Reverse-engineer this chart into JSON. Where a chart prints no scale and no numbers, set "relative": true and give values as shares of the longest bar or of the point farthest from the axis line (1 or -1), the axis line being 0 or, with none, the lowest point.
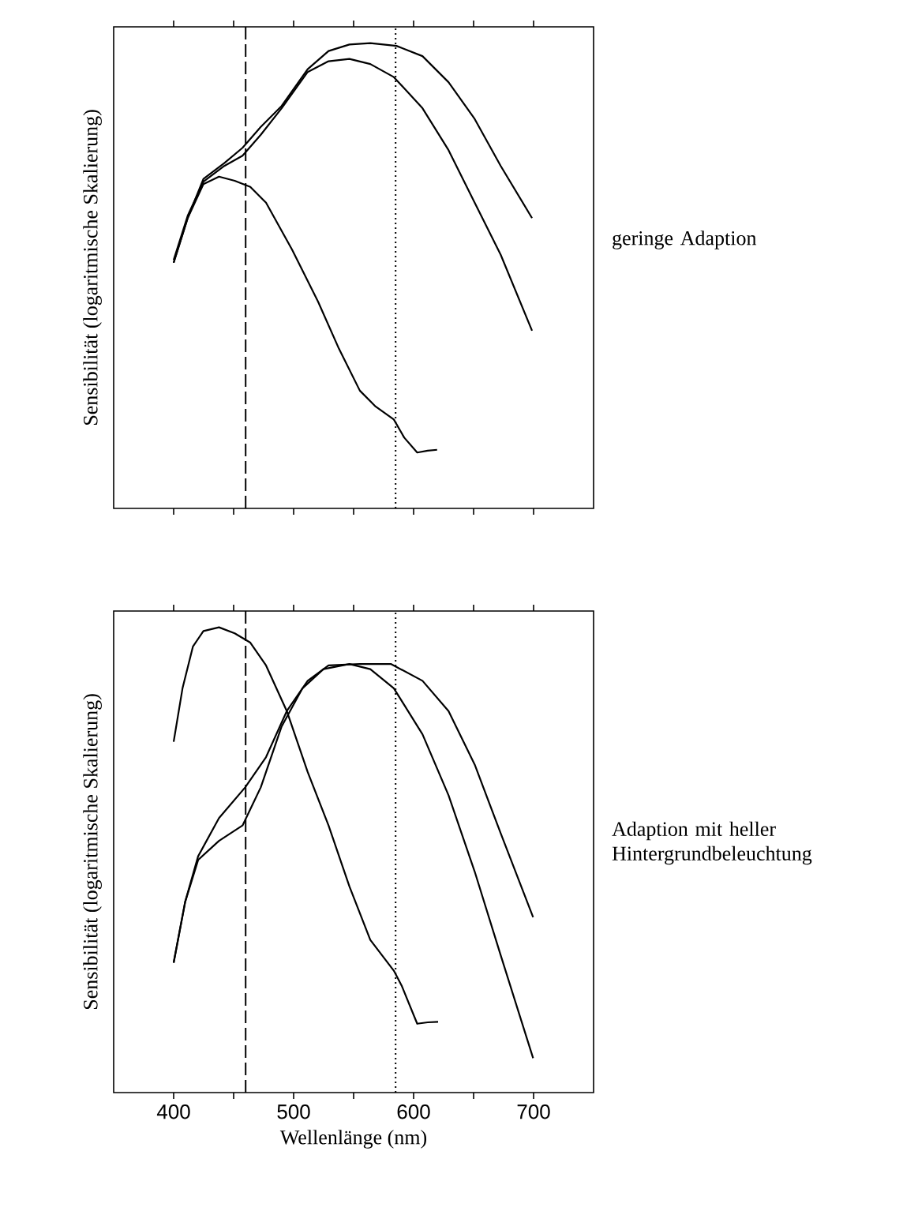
{
  "chart_data": [
    {
      "type": "line",
      "relative": true,
      "ylabel": "Sensibilität (logaritmische Skalierung)",
      "xlim": [
        350,
        750
      ],
      "xticks": [
        400,
        450,
        500,
        550,
        600,
        650,
        700
      ],
      "tick_labels": false,
      "line_style": "solid",
      "annotations": [
        "geringe Adaption"
      ],
      "ref_lines": [
        {
          "axis": "x",
          "value": 460,
          "color": "#000000",
          "line_style": "dashed"
        },
        {
          "axis": "x",
          "value": 585,
          "color": "#000000",
          "line_style": "dotted"
        }
      ],
      "series": [
        {
          "color": "#000000",
          "x": [
            400,
            411.7,
            424.8,
            437.8,
            450.9,
            463.9,
            477,
            498.7,
            520.4,
            537.8,
            555.2,
            568.3,
            583.5,
            592.2,
            603,
            611.7,
            619.6
          ],
          "values": [
            0.528,
            0.624,
            0.697,
            0.713,
            0.704,
            0.691,
            0.657,
            0.556,
            0.444,
            0.343,
            0.253,
            0.219,
            0.191,
            0.152,
            0.12,
            0.124,
            0.126
          ]
        },
        {
          "color": "#000000",
          "x": [
            400,
            411.7,
            424.8,
            442.2,
            457.4,
            472.6,
            490,
            511.7,
            529.1,
            546.5,
            563.9,
            583.5,
            607.4,
            629.1,
            650.9,
            672.6,
            698.7
          ],
          "values": [
            0.534,
            0.629,
            0.702,
            0.736,
            0.758,
            0.803,
            0.86,
            0.938,
            0.961,
            0.966,
            0.955,
            0.927,
            0.86,
            0.77,
            0.657,
            0.545,
            0.382
          ]
        },
        {
          "color": "#000000",
          "x": [
            400,
            411.7,
            424.8,
            442.2,
            457.4,
            472.6,
            490,
            511.7,
            529.1,
            546.5,
            563.9,
            585.7,
            607.4,
            629.1,
            650.9,
            672.6,
            698.7
          ],
          "values": [
            0.528,
            0.624,
            0.708,
            0.742,
            0.775,
            0.82,
            0.865,
            0.944,
            0.983,
            0.997,
            1.0,
            0.994,
            0.972,
            0.916,
            0.837,
            0.736,
            0.624
          ]
        }
      ]
    },
    {
      "type": "line",
      "relative": true,
      "ylabel": "Sensibilität (logaritmische Skalierung)",
      "xlabel": "Wellenlänge (nm)",
      "xlim": [
        350,
        750
      ],
      "xticks": [
        400,
        {
          "value": 450,
          "label": null
        },
        500,
        {
          "value": 550,
          "label": null
        },
        600,
        {
          "value": 650,
          "label": null
        },
        700
      ],
      "tick_labels": "x",
      "line_style": "solid",
      "annotations": [
        "Adaption mit heller Hintergrundbeleuchtung"
      ],
      "ref_lines": [
        {
          "axis": "x",
          "value": 460,
          "color": "#000000",
          "line_style": "dashed"
        },
        {
          "axis": "x",
          "value": 585,
          "color": "#000000",
          "line_style": "dotted"
        }
      ],
      "series": [
        {
          "color": "#000000",
          "x": [
            400,
            407.4,
            416.1,
            424.8,
            437.8,
            450.9,
            463.9,
            477,
            494.3,
            511.7,
            529.1,
            546.5,
            563.9,
            583.5,
            590,
            603,
            611.7,
            620.4
          ],
          "values": [
            0.754,
            0.869,
            0.959,
            0.992,
            1.0,
            0.987,
            0.967,
            0.918,
            0.82,
            0.689,
            0.574,
            0.443,
            0.328,
            0.262,
            0.23,
            0.148,
            0.151,
            0.152
          ]
        },
        {
          "color": "#000000",
          "x": [
            400,
            409.6,
            420.4,
            437.8,
            457.4,
            472.6,
            490,
            507.4,
            524.8,
            546.5,
            563.9,
            583.5,
            607.4,
            629.1,
            650.9,
            672.6,
            699.6
          ],
          "values": [
            0.279,
            0.41,
            0.5,
            0.541,
            0.574,
            0.656,
            0.787,
            0.869,
            0.91,
            0.921,
            0.91,
            0.869,
            0.77,
            0.639,
            0.475,
            0.295,
            0.074
          ]
        },
        {
          "color": "#000000",
          "x": [
            400,
            409.6,
            420.4,
            437.8,
            459.6,
            477,
            494.3,
            511.7,
            529.1,
            555.2,
            581.3,
            607.4,
            629.1,
            650.9,
            672.6,
            699.6
          ],
          "values": [
            0.279,
            0.41,
            0.508,
            0.59,
            0.656,
            0.721,
            0.82,
            0.885,
            0.918,
            0.921,
            0.921,
            0.885,
            0.82,
            0.705,
            0.557,
            0.377
          ]
        }
      ]
    }
  ]
}
